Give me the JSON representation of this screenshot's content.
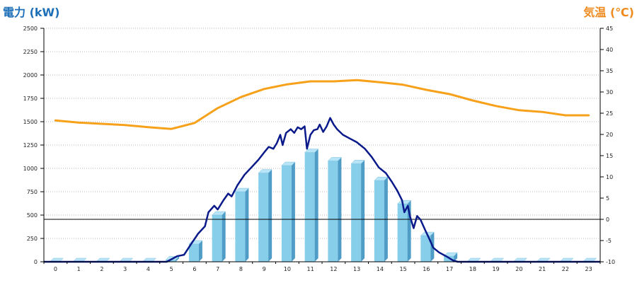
{
  "chart_data": {
    "type": "bar",
    "xlabel": "",
    "ylabel": "電力 (kW)",
    "y2label": "気温 (℃)",
    "ylabel_color": "#1d6fb8",
    "y2label_color": "#ee8a1e",
    "categories": [
      "0",
      "1",
      "2",
      "3",
      "4",
      "5",
      "6",
      "7",
      "8",
      "9",
      "10",
      "11",
      "12",
      "13",
      "14",
      "15",
      "16",
      "17",
      "18",
      "19",
      "20",
      "21",
      "22",
      "23"
    ],
    "ylim": [
      0,
      2500
    ],
    "y2lim": [
      -10,
      45
    ],
    "yticks": [
      0,
      250,
      500,
      750,
      1000,
      1250,
      1500,
      1750,
      2000,
      2250,
      2500
    ],
    "y2ticks": [
      -10,
      -5,
      0,
      5,
      10,
      15,
      20,
      25,
      30,
      35,
      40,
      45
    ],
    "grid": true,
    "hline": {
      "axis": "y2",
      "value": 0,
      "color": "#000000"
    },
    "series": [
      {
        "type": "bar",
        "axis": "y",
        "color": "#87ceeb",
        "values": [
          0,
          0,
          0,
          0,
          0,
          20,
          190,
          500,
          750,
          950,
          1030,
          1170,
          1080,
          1050,
          870,
          620,
          280,
          60,
          0,
          0,
          0,
          0,
          0,
          0
        ]
      },
      {
        "type": "line",
        "axis": "y",
        "color": "#0b1a8a",
        "x": [
          0,
          5.3,
          5.75,
          6.05,
          6.35,
          6.65,
          6.95,
          7.1,
          7.35,
          7.5,
          7.75,
          7.95,
          8.1,
          8.35,
          8.65,
          8.95,
          9.25,
          9.5,
          9.7,
          9.9,
          10.05,
          10.2,
          10.3,
          10.45,
          10.65,
          10.8,
          10.95,
          11.1,
          11.25,
          11.35,
          11.5,
          11.65,
          11.8,
          11.9,
          12.05,
          12.2,
          12.35,
          12.5,
          12.65,
          12.9,
          13.2,
          13.5,
          13.85,
          14.15,
          14.45,
          14.75,
          15.0,
          15.25,
          15.45,
          15.55,
          15.7,
          15.8,
          15.95,
          16.1,
          16.25,
          16.45,
          16.6,
          16.8,
          17.05,
          17.35,
          17.65,
          17.85,
          24
        ],
        "y": [
          0,
          0,
          60,
          75,
          190,
          300,
          380,
          530,
          600,
          560,
          660,
          730,
          700,
          820,
          930,
          1010,
          1090,
          1170,
          1230,
          1210,
          1270,
          1360,
          1250,
          1380,
          1420,
          1380,
          1440,
          1420,
          1450,
          1210,
          1360,
          1410,
          1420,
          1470,
          1390,
          1450,
          1540,
          1470,
          1420,
          1360,
          1320,
          1280,
          1210,
          1120,
          1010,
          950,
          860,
          760,
          660,
          530,
          600,
          480,
          360,
          490,
          450,
          340,
          260,
          150,
          100,
          60,
          15,
          0,
          0
        ]
      },
      {
        "type": "line",
        "axis": "y2",
        "color": "#f7a11a",
        "values": [
          23.3,
          22.8,
          22.5,
          22.2,
          21.7,
          21.3,
          22.7,
          26.2,
          28.8,
          30.7,
          31.8,
          32.5,
          32.5,
          32.8,
          32.3,
          31.7,
          30.5,
          29.5,
          28.0,
          26.7,
          25.7,
          25.3,
          24.5,
          24.5
        ]
      }
    ]
  }
}
